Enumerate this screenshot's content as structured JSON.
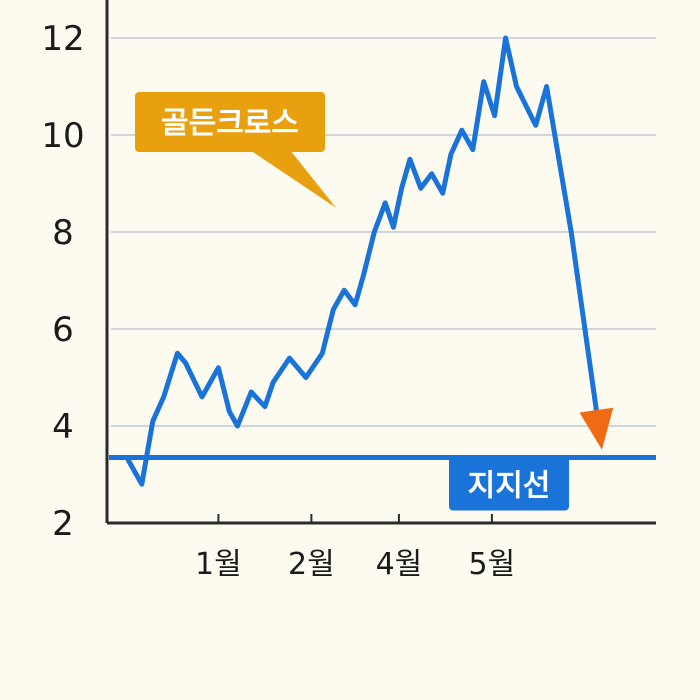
{
  "chart_data": {
    "type": "line",
    "title": "",
    "xlabel": "",
    "ylabel": "",
    "ylim": [
      2,
      12.6
    ],
    "xlim": [
      0,
      100
    ],
    "grid": true,
    "y_ticks": [
      2,
      4,
      6,
      8,
      10,
      12
    ],
    "y_tick_labels": [
      "2",
      "4",
      "6",
      "8",
      "10",
      "12"
    ],
    "x_ticks": [
      20,
      37,
      53,
      70
    ],
    "x_tick_labels": [
      "1월",
      "2월",
      "4월",
      "5월"
    ],
    "series": [
      {
        "color": "#1a73d9",
        "x": [
          3.5,
          6,
          8,
          10,
          12.5,
          14,
          17,
          20,
          22,
          23.5,
          26,
          28.5,
          30,
          33,
          36,
          39,
          41,
          43,
          45,
          46.5,
          48.5,
          50.5,
          52,
          53.5,
          55,
          57,
          59,
          61,
          62.5,
          64.5,
          66.5,
          68.5,
          70.5,
          72.5,
          74.5,
          78,
          80,
          84.5,
          89.5
        ],
        "y": [
          3.3,
          2.8,
          4.1,
          4.6,
          5.5,
          5.3,
          4.6,
          5.2,
          4.3,
          4.0,
          4.7,
          4.4,
          4.9,
          5.4,
          5.0,
          5.5,
          6.4,
          6.8,
          6.5,
          7.1,
          8.0,
          8.6,
          8.1,
          8.9,
          9.5,
          8.9,
          9.2,
          8.8,
          9.6,
          10.1,
          9.7,
          11.1,
          10.4,
          12.0,
          11.0,
          10.2,
          11.0,
          8.0,
          4.0
        ]
      }
    ],
    "support_line": {
      "label": "지지선",
      "y": 3.35,
      "color": "#1a73d9"
    },
    "annotations": [
      {
        "text": "골든크로스",
        "color": "#e8a00e",
        "target_x": 41.5,
        "target_y": 8.5
      }
    ],
    "arrow_color": "#f06a14"
  }
}
